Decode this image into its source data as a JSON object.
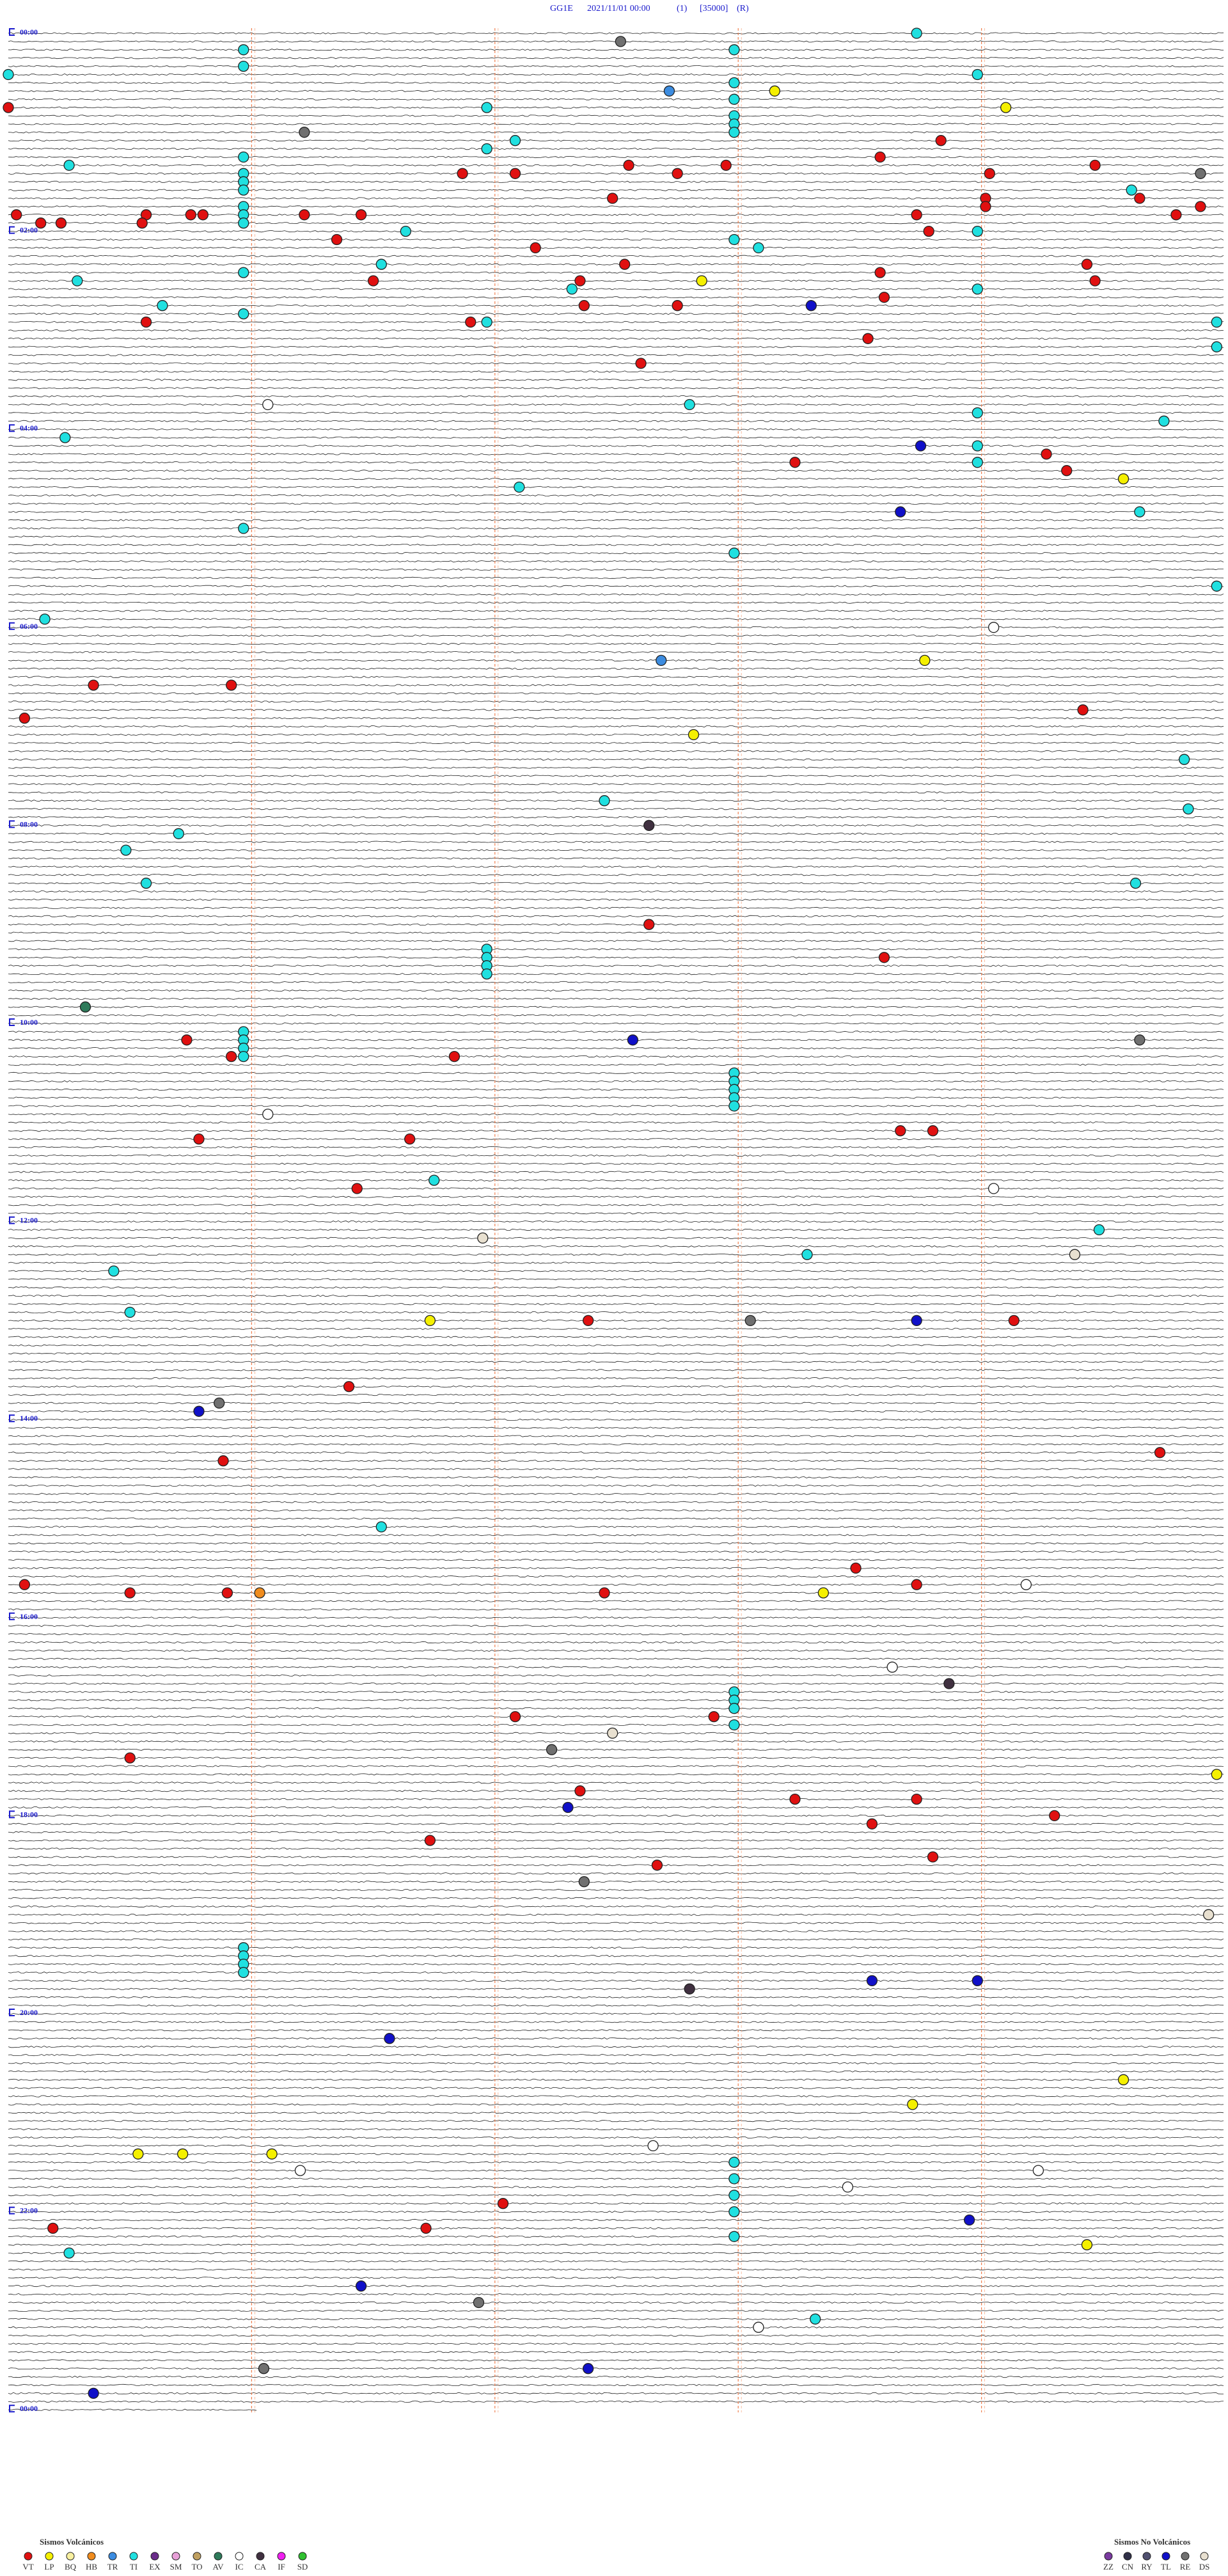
{
  "header": {
    "station": "GG1E",
    "datetime": "2021/11/01 00:00",
    "channel": "(1)",
    "scale": "[35000]",
    "mode": "(R)"
  },
  "hours": [
    "00:00",
    "02:00",
    "04:00",
    "06:00",
    "08:00",
    "10:00",
    "12:00",
    "14:00",
    "16:00",
    "18:00",
    "20:00",
    "22:00",
    "00:00"
  ],
  "legend_volcanic": {
    "title": "Sismos Volcánicos",
    "items": [
      {
        "code": "VT",
        "color": "#e01010"
      },
      {
        "code": "LP",
        "color": "#f5f000"
      },
      {
        "code": "BQ",
        "color": "#f8f0a0"
      },
      {
        "code": "HB",
        "color": "#f08c1e"
      },
      {
        "code": "TR",
        "color": "#3c8ce0"
      },
      {
        "code": "TI",
        "color": "#20e0e0"
      },
      {
        "code": "EX",
        "color": "#6a2c8a"
      },
      {
        "code": "SM",
        "color": "#e8a0d8"
      },
      {
        "code": "TO",
        "color": "#c0a060"
      },
      {
        "code": "AV",
        "color": "#2e7a5a"
      },
      {
        "code": "IC",
        "color": "#ffffff"
      },
      {
        "code": "CA",
        "color": "#403040"
      },
      {
        "code": "IF",
        "color": "#f020f0"
      },
      {
        "code": "SD",
        "color": "#30c030"
      }
    ]
  },
  "legend_non_volcanic": {
    "title": "Sismos No Volcánicos",
    "items": [
      {
        "code": "ZZ",
        "color": "#7a3aa0"
      },
      {
        "code": "CN",
        "color": "#303048"
      },
      {
        "code": "RY",
        "color": "#505070"
      },
      {
        "code": "TL",
        "color": "#1010c8"
      },
      {
        "code": "RE",
        "color": "#707070"
      },
      {
        "code": "DS",
        "color": "#e8e0d0"
      }
    ]
  },
  "events": [
    [
      0,
      224,
      "TI"
    ],
    [
      1,
      151,
      "RE"
    ],
    [
      2,
      58,
      "TI"
    ],
    [
      2,
      179,
      "TI"
    ],
    [
      4,
      58,
      "TI"
    ],
    [
      5,
      0,
      "TI"
    ],
    [
      5,
      239,
      "TI"
    ],
    [
      6,
      179,
      "TI"
    ],
    [
      7,
      163,
      "TR"
    ],
    [
      7,
      189,
      "LP"
    ],
    [
      8,
      179,
      "TI"
    ],
    [
      9,
      118,
      "TI"
    ],
    [
      9,
      246,
      "LP"
    ],
    [
      9,
      0,
      "VT"
    ],
    [
      10,
      179,
      "TI"
    ],
    [
      11,
      179,
      "TI"
    ],
    [
      12,
      73,
      "RE"
    ],
    [
      12,
      179,
      "TI"
    ],
    [
      13,
      125,
      "TI"
    ],
    [
      13,
      230,
      "VT"
    ],
    [
      14,
      118,
      "TI"
    ],
    [
      15,
      58,
      "TI"
    ],
    [
      15,
      215,
      "VT"
    ],
    [
      16,
      15,
      "TI"
    ],
    [
      16,
      153,
      "VT"
    ],
    [
      16,
      177,
      "VT"
    ],
    [
      16,
      268,
      "VT"
    ],
    [
      17,
      58,
      "TI"
    ],
    [
      17,
      112,
      "VT"
    ],
    [
      17,
      125,
      "VT"
    ],
    [
      17,
      165,
      "VT"
    ],
    [
      17,
      242,
      "VT"
    ],
    [
      17,
      294,
      "RE"
    ],
    [
      18,
      58,
      "TI"
    ],
    [
      19,
      277,
      "TI"
    ],
    [
      19,
      58,
      "TI"
    ],
    [
      20,
      149,
      "VT"
    ],
    [
      20,
      241,
      "VT"
    ],
    [
      20,
      279,
      "VT"
    ],
    [
      21,
      58,
      "TI"
    ],
    [
      21,
      241,
      "VT"
    ],
    [
      21,
      294,
      "VT"
    ],
    [
      22,
      2,
      "VT"
    ],
    [
      22,
      34,
      "VT"
    ],
    [
      22,
      45,
      "VT"
    ],
    [
      22,
      48,
      "VT"
    ],
    [
      22,
      58,
      "TI"
    ],
    [
      22,
      73,
      "VT"
    ],
    [
      22,
      87,
      "VT"
    ],
    [
      22,
      224,
      "VT"
    ],
    [
      22,
      288,
      "VT"
    ],
    [
      23,
      8,
      "VT"
    ],
    [
      23,
      13,
      "VT"
    ],
    [
      23,
      33,
      "VT"
    ],
    [
      23,
      58,
      "TI"
    ],
    [
      24,
      98,
      "TI"
    ],
    [
      24,
      227,
      "VT"
    ],
    [
      24,
      239,
      "TI"
    ],
    [
      25,
      81,
      "VT"
    ],
    [
      25,
      179,
      "TI"
    ],
    [
      26,
      130,
      "VT"
    ],
    [
      26,
      185,
      "TI"
    ],
    [
      28,
      92,
      "TI"
    ],
    [
      28,
      152,
      "VT"
    ],
    [
      28,
      266,
      "VT"
    ],
    [
      29,
      58,
      "TI"
    ],
    [
      29,
      215,
      "VT"
    ],
    [
      30,
      17,
      "TI"
    ],
    [
      30,
      90,
      "VT"
    ],
    [
      30,
      141,
      "VT"
    ],
    [
      30,
      171,
      "LP"
    ],
    [
      30,
      268,
      "VT"
    ],
    [
      31,
      139,
      "TI"
    ],
    [
      31,
      239,
      "TI"
    ],
    [
      32,
      216,
      "VT"
    ],
    [
      33,
      38,
      "TI"
    ],
    [
      33,
      142,
      "VT"
    ],
    [
      33,
      165,
      "VT"
    ],
    [
      33,
      198,
      "TL"
    ],
    [
      34,
      58,
      "TI"
    ],
    [
      35,
      34,
      "VT"
    ],
    [
      35,
      114,
      "VT"
    ],
    [
      35,
      118,
      "TI"
    ],
    [
      35,
      298,
      "TI"
    ],
    [
      37,
      212,
      "VT"
    ],
    [
      38,
      298,
      "TI"
    ],
    [
      40,
      156,
      "VT"
    ],
    [
      45,
      64,
      "IC"
    ],
    [
      45,
      168,
      "TI"
    ],
    [
      46,
      239,
      "TI"
    ],
    [
      47,
      285,
      "TI"
    ],
    [
      49,
      14,
      "TI"
    ],
    [
      50,
      225,
      "TL"
    ],
    [
      50,
      239,
      "TI"
    ],
    [
      51,
      256,
      "VT"
    ],
    [
      52,
      194,
      "VT"
    ],
    [
      52,
      239,
      "TI"
    ],
    [
      53,
      261,
      "VT"
    ],
    [
      54,
      275,
      "LP"
    ],
    [
      55,
      126,
      "TI"
    ],
    [
      58,
      220,
      "TL"
    ],
    [
      58,
      279,
      "TI"
    ],
    [
      60,
      58,
      "TI"
    ],
    [
      63,
      179,
      "TI"
    ],
    [
      67,
      298,
      "TI"
    ],
    [
      71,
      9,
      "TI"
    ],
    [
      72,
      243,
      "IC"
    ],
    [
      76,
      161,
      "TR"
    ],
    [
      76,
      226,
      "LP"
    ],
    [
      79,
      21,
      "VT"
    ],
    [
      79,
      55,
      "VT"
    ],
    [
      82,
      265,
      "VT"
    ],
    [
      83,
      4,
      "VT"
    ],
    [
      85,
      169,
      "LP"
    ],
    [
      88,
      290,
      "TI"
    ],
    [
      93,
      147,
      "TI"
    ],
    [
      94,
      291,
      "TI"
    ],
    [
      96,
      158,
      "CA"
    ],
    [
      97,
      42,
      "TI"
    ],
    [
      99,
      29,
      "TI"
    ],
    [
      103,
      34,
      "TI"
    ],
    [
      103,
      278,
      "TI"
    ],
    [
      108,
      158,
      "VT"
    ],
    [
      111,
      118,
      "TI"
    ],
    [
      112,
      118,
      "TI"
    ],
    [
      112,
      216,
      "VT"
    ],
    [
      113,
      118,
      "TI"
    ],
    [
      114,
      118,
      "TI"
    ],
    [
      118,
      19,
      "AV"
    ],
    [
      121,
      58,
      "TI"
    ],
    [
      122,
      44,
      "VT"
    ],
    [
      122,
      58,
      "TI"
    ],
    [
      122,
      154,
      "TL"
    ],
    [
      122,
      279,
      "RE"
    ],
    [
      123,
      58,
      "TI"
    ],
    [
      124,
      55,
      "VT"
    ],
    [
      124,
      110,
      "VT"
    ],
    [
      124,
      58,
      "TI"
    ],
    [
      126,
      179,
      "TI"
    ],
    [
      127,
      179,
      "TI"
    ],
    [
      128,
      179,
      "TI"
    ],
    [
      129,
      179,
      "TI"
    ],
    [
      130,
      179,
      "TI"
    ],
    [
      131,
      64,
      "IC"
    ],
    [
      133,
      220,
      "VT"
    ],
    [
      133,
      228,
      "VT"
    ],
    [
      134,
      47,
      "VT"
    ],
    [
      134,
      99,
      "VT"
    ],
    [
      139,
      105,
      "TI"
    ],
    [
      140,
      86,
      "VT"
    ],
    [
      140,
      243,
      "IC"
    ],
    [
      145,
      269,
      "TI"
    ],
    [
      146,
      117,
      "DS"
    ],
    [
      148,
      197,
      "TI"
    ],
    [
      148,
      263,
      "DS"
    ],
    [
      150,
      26,
      "TI"
    ],
    [
      155,
      30,
      "TI"
    ],
    [
      156,
      104,
      "LP"
    ],
    [
      156,
      143,
      "VT"
    ],
    [
      156,
      183,
      "RE"
    ],
    [
      156,
      224,
      "TL"
    ],
    [
      156,
      248,
      "VT"
    ],
    [
      164,
      84,
      "VT"
    ],
    [
      166,
      52,
      "RE"
    ],
    [
      167,
      47,
      "TL"
    ],
    [
      172,
      284,
      "VT"
    ],
    [
      173,
      53,
      "VT"
    ],
    [
      181,
      92,
      "TI"
    ],
    [
      186,
      209,
      "VT"
    ],
    [
      188,
      4,
      "VT"
    ],
    [
      188,
      224,
      "VT"
    ],
    [
      188,
      251,
      "IC"
    ],
    [
      189,
      30,
      "VT"
    ],
    [
      189,
      54,
      "VT"
    ],
    [
      189,
      62,
      "HB"
    ],
    [
      189,
      147,
      "VT"
    ],
    [
      189,
      201,
      "LP"
    ],
    [
      198,
      218,
      "IC"
    ],
    [
      200,
      232,
      "CA"
    ],
    [
      201,
      179,
      "TI"
    ],
    [
      202,
      179,
      "TI"
    ],
    [
      203,
      179,
      "TI"
    ],
    [
      204,
      125,
      "VT"
    ],
    [
      204,
      174,
      "VT"
    ],
    [
      205,
      179,
      "TI"
    ],
    [
      206,
      149,
      "DS"
    ],
    [
      208,
      134,
      "RE"
    ],
    [
      209,
      30,
      "VT"
    ],
    [
      211,
      298,
      "LP"
    ],
    [
      213,
      141,
      "VT"
    ],
    [
      214,
      194,
      "VT"
    ],
    [
      214,
      224,
      "VT"
    ],
    [
      215,
      138,
      "TL"
    ],
    [
      216,
      258,
      "VT"
    ],
    [
      217,
      213,
      "VT"
    ],
    [
      219,
      104,
      "VT"
    ],
    [
      221,
      228,
      "VT"
    ],
    [
      222,
      160,
      "VT"
    ],
    [
      224,
      142,
      "RE"
    ],
    [
      228,
      296,
      "DS"
    ],
    [
      232,
      58,
      "TI"
    ],
    [
      233,
      58,
      "TI"
    ],
    [
      234,
      58,
      "TI"
    ],
    [
      235,
      58,
      "TI"
    ],
    [
      236,
      213,
      "TL"
    ],
    [
      236,
      239,
      "TL"
    ],
    [
      237,
      168,
      "CA"
    ],
    [
      243,
      94,
      "TL"
    ],
    [
      248,
      275,
      "LP"
    ],
    [
      251,
      223,
      "LP"
    ],
    [
      256,
      159,
      "IC"
    ],
    [
      257,
      32,
      "LP"
    ],
    [
      257,
      43,
      "LP"
    ],
    [
      257,
      65,
      "LP"
    ],
    [
      258,
      179,
      "TI"
    ],
    [
      259,
      72,
      "IC"
    ],
    [
      259,
      254,
      "IC"
    ],
    [
      260,
      179,
      "TI"
    ],
    [
      261,
      207,
      "IC"
    ],
    [
      262,
      179,
      "TI"
    ],
    [
      263,
      122,
      "VT"
    ],
    [
      264,
      179,
      "TI"
    ],
    [
      265,
      237,
      "TL"
    ],
    [
      266,
      11,
      "VT"
    ],
    [
      266,
      103,
      "VT"
    ],
    [
      267,
      179,
      "TI"
    ],
    [
      268,
      266,
      "LP"
    ],
    [
      269,
      15,
      "TI"
    ],
    [
      273,
      87,
      "TL"
    ],
    [
      275,
      116,
      "RE"
    ],
    [
      277,
      199,
      "TI"
    ],
    [
      278,
      185,
      "IC"
    ],
    [
      283,
      63,
      "RE"
    ],
    [
      283,
      143,
      "TL"
    ],
    [
      286,
      21,
      "TL"
    ]
  ]
}
